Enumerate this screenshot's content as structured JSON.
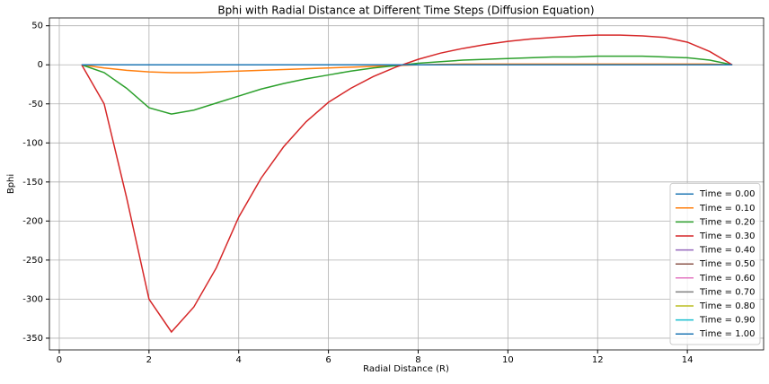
{
  "chart_data": {
    "type": "line",
    "title": "Bphi with Radial Distance at Different Time Steps (Diffusion Equation)",
    "xlabel": "Radial Distance (R)",
    "ylabel": "Bphi",
    "x": [
      0.5,
      1,
      1.5,
      2,
      2.5,
      3,
      3.5,
      4,
      4.5,
      5,
      5.5,
      6,
      6.5,
      7,
      7.5,
      8,
      8.5,
      9,
      9.5,
      10,
      10.5,
      11,
      11.5,
      12,
      12.5,
      13,
      13.5,
      14,
      14.5,
      15
    ],
    "series": [
      {
        "name": "Time = 0.00",
        "color": "#1f77b4",
        "values": [
          0,
          0,
          0,
          0,
          0,
          0,
          0,
          0,
          0,
          0,
          0,
          0,
          0,
          0,
          0,
          0,
          0,
          0,
          0,
          0,
          0,
          0,
          0,
          0,
          0,
          0,
          0,
          0,
          0,
          0
        ]
      },
      {
        "name": "Time = 0.10",
        "color": "#ff7f0e",
        "values": [
          0,
          -4,
          -7,
          -9,
          -10,
          -10,
          -9,
          -8,
          -7,
          -6,
          -5,
          -4,
          -3,
          -2,
          -1,
          0,
          0.5,
          1,
          1,
          1,
          1,
          1,
          1,
          1,
          1,
          1,
          1,
          1,
          1,
          0
        ]
      },
      {
        "name": "Time = 0.20",
        "color": "#2ca02c",
        "values": [
          0,
          -10,
          -30,
          -55,
          -63,
          -58,
          -49,
          -40,
          -31,
          -24,
          -18,
          -13,
          -8,
          -4,
          -1,
          2,
          4,
          6,
          7,
          8,
          9,
          10,
          10,
          11,
          11,
          11,
          10,
          9,
          6,
          0
        ]
      },
      {
        "name": "Time = 0.30",
        "color": "#d62728",
        "values": [
          0,
          -50,
          -170,
          -300,
          -342,
          -310,
          -260,
          -195,
          -145,
          -105,
          -73,
          -48,
          -30,
          -15,
          -3,
          7,
          15,
          21,
          26,
          30,
          33,
          35,
          37,
          38,
          38,
          37,
          35,
          29,
          17,
          0
        ]
      },
      {
        "name": "Time = 0.40",
        "color": "#9467bd",
        "values": [
          0,
          0,
          0,
          0,
          0,
          0,
          0,
          0,
          0,
          0,
          0,
          0,
          0,
          0,
          0,
          0,
          0,
          0,
          0,
          0,
          0,
          0,
          0,
          0,
          0,
          0,
          0,
          0,
          0,
          0
        ]
      },
      {
        "name": "Time = 0.50",
        "color": "#8c564b",
        "values": [
          0,
          0,
          0,
          0,
          0,
          0,
          0,
          0,
          0,
          0,
          0,
          0,
          0,
          0,
          0,
          0,
          0,
          0,
          0,
          0,
          0,
          0,
          0,
          0,
          0,
          0,
          0,
          0,
          0,
          0
        ]
      },
      {
        "name": "Time = 0.60",
        "color": "#e377c2",
        "values": [
          0,
          0,
          0,
          0,
          0,
          0,
          0,
          0,
          0,
          0,
          0,
          0,
          0,
          0,
          0,
          0,
          0,
          0,
          0,
          0,
          0,
          0,
          0,
          0,
          0,
          0,
          0,
          0,
          0,
          0
        ]
      },
      {
        "name": "Time = 0.70",
        "color": "#7f7f7f",
        "values": [
          0,
          0,
          0,
          0,
          0,
          0,
          0,
          0,
          0,
          0,
          0,
          0,
          0,
          0,
          0,
          0,
          0,
          0,
          0,
          0,
          0,
          0,
          0,
          0,
          0,
          0,
          0,
          0,
          0,
          0
        ]
      },
      {
        "name": "Time = 0.80",
        "color": "#bcbd22",
        "values": [
          0,
          0,
          0,
          0,
          0,
          0,
          0,
          0,
          0,
          0,
          0,
          0,
          0,
          0,
          0,
          0,
          0,
          0,
          0,
          0,
          0,
          0,
          0,
          0,
          0,
          0,
          0,
          0,
          0,
          0
        ]
      },
      {
        "name": "Time = 0.90",
        "color": "#17becf",
        "values": [
          0,
          0,
          0,
          0,
          0,
          0,
          0,
          0,
          0,
          0,
          0,
          0,
          0,
          0,
          0,
          0,
          0,
          0,
          0,
          0,
          0,
          0,
          0,
          0,
          0,
          0,
          0,
          0,
          0,
          0
        ]
      },
      {
        "name": "Time = 1.00",
        "color": "#1f77b4",
        "values": [
          0,
          0,
          0,
          0,
          0,
          0,
          0,
          0,
          0,
          0,
          0,
          0,
          0,
          0,
          0,
          0,
          0,
          0,
          0,
          0,
          0,
          0,
          0,
          0,
          0,
          0,
          0,
          0,
          0,
          0
        ]
      }
    ],
    "xlim": [
      -0.22,
      15.7
    ],
    "xticks": [
      0,
      2,
      4,
      6,
      8,
      10,
      12,
      14
    ],
    "ylim": [
      -365,
      60
    ],
    "yticks": [
      -350,
      -300,
      -250,
      -200,
      -150,
      -100,
      -50,
      0,
      50
    ],
    "grid": true,
    "legend": "lower right"
  }
}
